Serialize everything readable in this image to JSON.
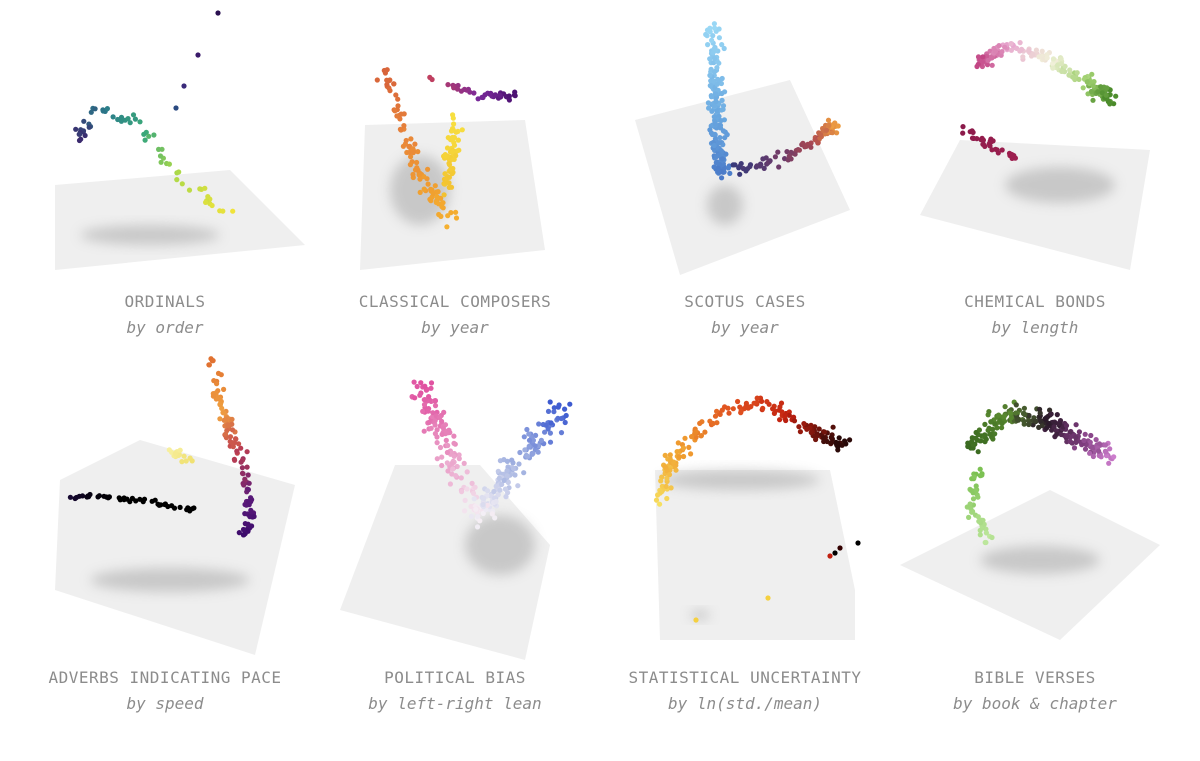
{
  "panels": [
    {
      "title": "ORDINALS",
      "subtitle": "by order"
    },
    {
      "title": "CLASSICAL COMPOSERS",
      "subtitle": "by year"
    },
    {
      "title": "SCOTUS CASES",
      "subtitle": "by year"
    },
    {
      "title": "CHEMICAL BONDS",
      "subtitle": "by length"
    },
    {
      "title": "ADVERBS INDICATING PACE",
      "subtitle": "by speed"
    },
    {
      "title": "POLITICAL BIAS",
      "subtitle": "by left-right lean"
    },
    {
      "title": "STATISTICAL UNCERTAINTY",
      "subtitle": "by ln(std./mean)"
    },
    {
      "title": "BIBLE VERSES",
      "subtitle": "by book & chapter"
    }
  ]
}
